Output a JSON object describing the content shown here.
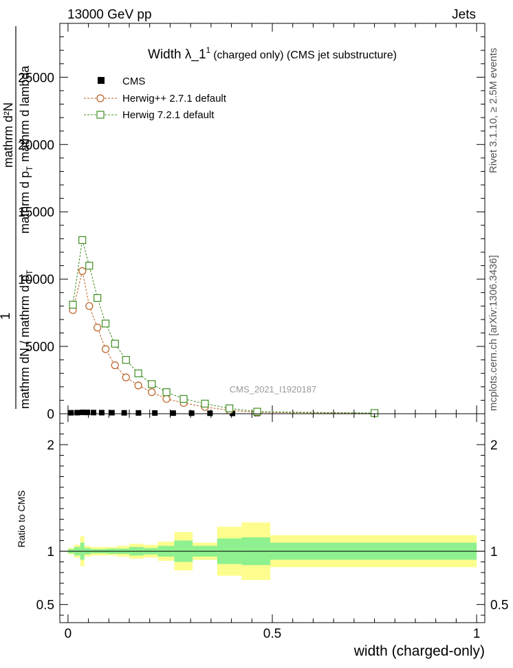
{
  "header": {
    "energy_label": "13000 GeV pp",
    "process_label": "Jets",
    "rivet_label": "Rivet 3.1.10, ≥ 2.5M events",
    "mcplots_label": "mcplots.cern.ch [arXiv:1306.3436]",
    "analysis_id": "CMS_2021_I1920187"
  },
  "chart_data": [
    {
      "type": "scatter",
      "title_main": "Width λ_1",
      "title_sup": "1",
      "title_suffix": "(charged only) (CMS jet substructure)",
      "ylabel_frac_num": "1",
      "ylabel_frac_den": "mathrm dN / mathrm d p",
      "ylabel_frac_den_sub": "T",
      "ylabel_right_num": "mathrm d²N",
      "ylabel_right_den": "mathrm d p",
      "ylabel_right_den_sub": "T",
      "ylabel_right_den_tail": "mathrm d lambda",
      "xlim": [
        -0.02,
        1.02
      ],
      "ylim": [
        0,
        29000
      ],
      "y_ticks": [
        0,
        5000,
        10000,
        15000,
        20000,
        25000
      ],
      "y_tick_labels": [
        "0",
        "5000",
        "10000",
        "15000",
        "20000",
        "25000"
      ],
      "legend": {
        "position": "top-left",
        "entries": [
          "CMS",
          "Herwig++ 2.7.1 default",
          "Herwig 7.2.1 default"
        ]
      },
      "colors": {
        "cms": "#000000",
        "herwigpp": "#b85c1e",
        "herwig7": "#3c8c1e"
      },
      "series": [
        {
          "name": "CMS",
          "marker": "filled-square",
          "x": [
            0.0075,
            0.0225,
            0.0355,
            0.0475,
            0.0625,
            0.0825,
            0.1075,
            0.1375,
            0.1725,
            0.2125,
            0.2575,
            0.3025,
            0.3475,
            0.4025,
            0.4625,
            0.7525
          ],
          "y": [
            70,
            80,
            100,
            95,
            85,
            80,
            75,
            65,
            60,
            55,
            45,
            40,
            35,
            25,
            15,
            5
          ]
        },
        {
          "name": "Herwig++ 2.7.1 default",
          "marker": "open-circle",
          "x": [
            0.012,
            0.035,
            0.052,
            0.072,
            0.092,
            0.115,
            0.142,
            0.172,
            0.205,
            0.241,
            0.283,
            0.335,
            0.395,
            0.463,
            0.75
          ],
          "y": [
            7700,
            10600,
            8000,
            6400,
            4800,
            3600,
            2700,
            2100,
            1600,
            1100,
            800,
            500,
            250,
            100,
            30
          ]
        },
        {
          "name": "Herwig 7.2.1 default",
          "marker": "open-square",
          "x": [
            0.012,
            0.035,
            0.052,
            0.072,
            0.092,
            0.115,
            0.142,
            0.172,
            0.205,
            0.241,
            0.283,
            0.335,
            0.395,
            0.463,
            0.75
          ],
          "y": [
            8100,
            12900,
            11000,
            8600,
            6700,
            5200,
            4000,
            3000,
            2200,
            1600,
            1100,
            750,
            400,
            150,
            50
          ]
        }
      ]
    },
    {
      "type": "area",
      "ylabel": "Ratio to CMS",
      "xlabel": "width (charged-only)",
      "xlim": [
        -0.02,
        1.02
      ],
      "ylim": [
        0.33,
        2.29
      ],
      "x_ticks": [
        0,
        0.5,
        1
      ],
      "x_tick_labels": [
        "0",
        "0.5",
        "1"
      ],
      "y_ticks": [
        0.5,
        1,
        2
      ],
      "y_tick_labels": [
        "0.5",
        "1",
        "2"
      ],
      "colors": {
        "stat": "#8ef08e",
        "total": "#fdfd8e",
        "line": "#000000"
      },
      "bins": [
        {
          "lo": 0.0,
          "hi": 0.015,
          "stat": 0.02,
          "total": 0.03
        },
        {
          "lo": 0.015,
          "hi": 0.03,
          "stat": 0.04,
          "total": 0.06
        },
        {
          "lo": 0.03,
          "hi": 0.04,
          "stat": 0.08,
          "total": 0.14
        },
        {
          "lo": 0.04,
          "hi": 0.055,
          "stat": 0.03,
          "total": 0.05
        },
        {
          "lo": 0.055,
          "hi": 0.07,
          "stat": 0.02,
          "total": 0.04
        },
        {
          "lo": 0.07,
          "hi": 0.095,
          "stat": 0.02,
          "total": 0.04
        },
        {
          "lo": 0.095,
          "hi": 0.12,
          "stat": 0.025,
          "total": 0.04
        },
        {
          "lo": 0.12,
          "hi": 0.15,
          "stat": 0.025,
          "total": 0.05
        },
        {
          "lo": 0.15,
          "hi": 0.185,
          "stat": 0.04,
          "total": 0.07
        },
        {
          "lo": 0.185,
          "hi": 0.22,
          "stat": 0.03,
          "total": 0.06
        },
        {
          "lo": 0.22,
          "hi": 0.26,
          "stat": 0.05,
          "total": 0.09
        },
        {
          "lo": 0.26,
          "hi": 0.305,
          "stat": 0.1,
          "total": 0.18
        },
        {
          "lo": 0.305,
          "hi": 0.365,
          "stat": 0.05,
          "total": 0.08
        },
        {
          "lo": 0.365,
          "hi": 0.425,
          "stat": 0.12,
          "total": 0.23
        },
        {
          "lo": 0.425,
          "hi": 0.495,
          "stat": 0.13,
          "total": 0.27
        },
        {
          "lo": 0.495,
          "hi": 1.0,
          "stat": 0.08,
          "total": 0.15
        }
      ]
    }
  ]
}
